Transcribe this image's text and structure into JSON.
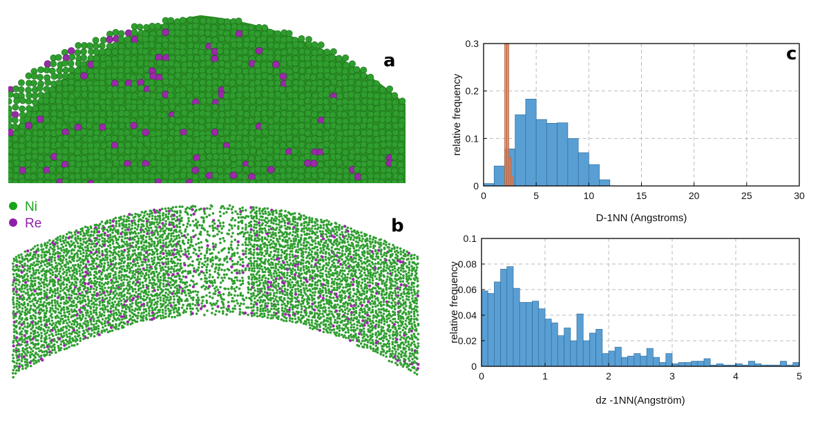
{
  "panels": {
    "a": "a",
    "b": "b",
    "c": "c"
  },
  "legend": [
    {
      "label": "Ni",
      "color": "#1aa31a"
    },
    {
      "label": "Re",
      "color": "#8e1fa8"
    }
  ],
  "colors": {
    "ni": "#2f9e2f",
    "re": "#9a2aa8",
    "bar_blue": "#5a9fd4",
    "bar_orange": "#d9825b"
  },
  "chart_data": [
    {
      "type": "bar",
      "xlabel": "D-1NN (Angstroms)",
      "ylabel": "relative frequency",
      "xlim": [
        0,
        30
      ],
      "ylim": [
        0,
        0.3
      ],
      "xticks": [
        0,
        5,
        10,
        15,
        20,
        25,
        30
      ],
      "yticks": [
        0,
        0.1,
        0.2,
        0.3
      ],
      "grid": true,
      "series": [
        {
          "color": "blue",
          "bin_edges": [
            0,
            1,
            2,
            3,
            4,
            5,
            6,
            7,
            8,
            9,
            10,
            11,
            12
          ],
          "values": [
            0.005,
            0.042,
            0.078,
            0.15,
            0.183,
            0.14,
            0.132,
            0.133,
            0.1,
            0.07,
            0.045,
            0.013
          ]
        },
        {
          "color": "orange",
          "bin_edges": [
            2.0,
            2.2,
            2.4,
            2.6,
            2.8
          ],
          "values": [
            1.0,
            1.0,
            0.06,
            0.02
          ]
        }
      ]
    },
    {
      "type": "bar",
      "xlabel": "dz -1NN(Angström)",
      "ylabel": "relative frequency",
      "xlim": [
        0,
        5
      ],
      "ylim": [
        0,
        0.1
      ],
      "xticks": [
        0,
        1,
        2,
        3,
        4,
        5
      ],
      "yticks": [
        0,
        0.02,
        0.04,
        0.06,
        0.08,
        0.1
      ],
      "grid": true,
      "series": [
        {
          "color": "blue",
          "bin_width": 0.1,
          "values": [
            0.059,
            0.057,
            0.066,
            0.076,
            0.078,
            0.061,
            0.05,
            0.05,
            0.051,
            0.045,
            0.037,
            0.034,
            0.024,
            0.03,
            0.02,
            0.041,
            0.02,
            0.026,
            0.029,
            0.01,
            0.012,
            0.015,
            0.007,
            0.008,
            0.01,
            0.008,
            0.014,
            0.007,
            0.003,
            0.01,
            0.002,
            0.003,
            0.003,
            0.004,
            0.004,
            0.006,
            0.001,
            0.002,
            0.001,
            0.001,
            0.002,
            0.001,
            0.004,
            0.002,
            0.001,
            0.001,
            0.001,
            0.004,
            0.001,
            0.003
          ]
        }
      ]
    }
  ]
}
